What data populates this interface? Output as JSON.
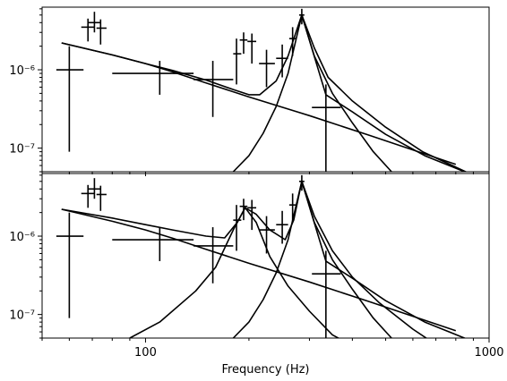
{
  "chart_data": [
    {
      "type": "line",
      "panel": "top",
      "x_scale": "log",
      "y_scale": "log",
      "xlim": [
        50,
        1000
      ],
      "ylim": [
        5e-08,
        6.3e-06
      ],
      "x_tick_labels": [],
      "y_ticks": [
        {
          "value": 1e-06,
          "label": "10⁻⁶"
        },
        {
          "value": 1e-07,
          "label": "10⁻⁷"
        }
      ],
      "grid": false,
      "datapoints": [
        {
          "x": 60,
          "y": 1e-06,
          "xerr": [
            55,
            66
          ],
          "yerr": [
            9e-08,
            2e-06
          ]
        },
        {
          "x": 68,
          "y": 3.5e-06,
          "xerr": [
            65,
            71
          ],
          "yerr": [
            2.3e-06,
            4.5e-06
          ]
        },
        {
          "x": 71,
          "y": 4e-06,
          "xerr": [
            68,
            74
          ],
          "yerr": [
            3e-06,
            5.5e-06
          ]
        },
        {
          "x": 74,
          "y": 3.4e-06,
          "xerr": [
            72,
            77
          ],
          "yerr": [
            2.1e-06,
            4.4e-06
          ]
        },
        {
          "x": 110,
          "y": 9e-07,
          "xerr": [
            80,
            138
          ],
          "yerr": [
            4.8e-07,
            1.3e-06
          ]
        },
        {
          "x": 157,
          "y": 7.5e-07,
          "xerr": [
            138,
            180
          ],
          "yerr": [
            2.5e-07,
            1.3e-06
          ]
        },
        {
          "x": 184,
          "y": 1.6e-06,
          "xerr": [
            180,
            190
          ],
          "yerr": [
            6.5e-07,
            2.5e-06
          ]
        },
        {
          "x": 193,
          "y": 2.4e-06,
          "xerr": [
            188,
            198
          ],
          "yerr": [
            1.6e-06,
            3e-06
          ]
        },
        {
          "x": 204,
          "y": 2.3e-06,
          "xerr": [
            198,
            210
          ],
          "yerr": [
            1.2e-06,
            2.9e-06
          ]
        },
        {
          "x": 225,
          "y": 1.2e-06,
          "xerr": [
            214,
            238
          ],
          "yerr": [
            6e-07,
            1.8e-06
          ]
        },
        {
          "x": 250,
          "y": 1.4e-06,
          "xerr": [
            240,
            260
          ],
          "yerr": [
            8e-07,
            2.1e-06
          ]
        },
        {
          "x": 268,
          "y": 2.5e-06,
          "xerr": [
            262,
            275
          ],
          "yerr": [
            1.5e-06,
            3.5e-06
          ]
        },
        {
          "x": 285,
          "y": 5e-06,
          "xerr": [
            280,
            290
          ],
          "yerr": [
            3.8e-06,
            6e-06
          ]
        },
        {
          "x": 335,
          "y": 3.3e-07,
          "xerr": [
            305,
            370
          ],
          "yerr": [
            5e-08,
            6.5e-07
          ]
        }
      ],
      "series": [
        {
          "x": [
            57,
            80,
            100,
            120,
            150,
            200,
            300,
            450,
            600,
            800
          ],
          "y": [
            2.2e-06,
            1.55e-06,
            1.2e-06,
            9.4e-07,
            6.8e-07,
            4.5e-07,
            2.6e-07,
            1.45e-07,
            9.5e-08,
            6.2e-08
          ]
        },
        {
          "x": [
            180,
            200,
            220,
            240,
            260,
            285,
            310,
            350,
            400,
            460,
            520
          ],
          "y": [
            5e-08,
            8e-08,
            1.55e-07,
            3.4e-07,
            9e-07,
            5e-06,
            1.5e-06,
            5e-07,
            2.1e-07,
            9e-08,
            5e-08
          ]
        },
        {
          "x": [
            57,
            80,
            100,
            120,
            150,
            180,
            200,
            215,
            240,
            260,
            285,
            310,
            340,
            400,
            500,
            640,
            900
          ],
          "y": [
            2.2e-06,
            1.55e-06,
            1.2e-06,
            9.8e-07,
            7.4e-07,
            5.6e-07,
            4.8e-07,
            4.8e-07,
            7.2e-07,
            1.5e-06,
            5e-06,
            1.9e-06,
            8e-07,
            4e-07,
            1.85e-07,
            9e-08,
            4.5e-08
          ]
        },
        {
          "x": [
            285,
            335,
            400,
            500,
            650,
            900
          ],
          "y": [
            5e-06,
            4.8e-07,
            2.9e-07,
            1.5e-07,
            8e-08,
            4.5e-08
          ]
        }
      ]
    },
    {
      "type": "line",
      "panel": "bottom",
      "x_scale": "log",
      "y_scale": "log",
      "xlim": [
        50,
        1000
      ],
      "ylim": [
        5e-08,
        6.3e-06
      ],
      "xlabel": "Frequency (Hz)",
      "x_ticks": [
        {
          "value": 100,
          "label": "100"
        },
        {
          "value": 1000,
          "label": "1000"
        }
      ],
      "y_ticks": [
        {
          "value": 1e-06,
          "label": "10⁻⁶"
        },
        {
          "value": 1e-07,
          "label": "10⁻⁷"
        }
      ],
      "grid": false,
      "datapoints": [
        {
          "x": 60,
          "y": 1e-06,
          "xerr": [
            55,
            66
          ],
          "yerr": [
            9e-08,
            2e-06
          ]
        },
        {
          "x": 68,
          "y": 3.5e-06,
          "xerr": [
            65,
            71
          ],
          "yerr": [
            2.3e-06,
            4.5e-06
          ]
        },
        {
          "x": 71,
          "y": 4e-06,
          "xerr": [
            68,
            74
          ],
          "yerr": [
            3e-06,
            5.5e-06
          ]
        },
        {
          "x": 74,
          "y": 3.4e-06,
          "xerr": [
            72,
            77
          ],
          "yerr": [
            2.1e-06,
            4.4e-06
          ]
        },
        {
          "x": 110,
          "y": 9e-07,
          "xerr": [
            80,
            138
          ],
          "yerr": [
            4.8e-07,
            1.3e-06
          ]
        },
        {
          "x": 157,
          "y": 7.5e-07,
          "xerr": [
            138,
            180
          ],
          "yerr": [
            2.5e-07,
            1.3e-06
          ]
        },
        {
          "x": 184,
          "y": 1.6e-06,
          "xerr": [
            180,
            190
          ],
          "yerr": [
            6.5e-07,
            2.5e-06
          ]
        },
        {
          "x": 193,
          "y": 2.4e-06,
          "xerr": [
            188,
            198
          ],
          "yerr": [
            1.6e-06,
            3e-06
          ]
        },
        {
          "x": 204,
          "y": 2.3e-06,
          "xerr": [
            198,
            210
          ],
          "yerr": [
            1.2e-06,
            2.9e-06
          ]
        },
        {
          "x": 225,
          "y": 1.2e-06,
          "xerr": [
            214,
            238
          ],
          "yerr": [
            6e-07,
            1.8e-06
          ]
        },
        {
          "x": 250,
          "y": 1.4e-06,
          "xerr": [
            240,
            260
          ],
          "yerr": [
            8e-07,
            2.1e-06
          ]
        },
        {
          "x": 268,
          "y": 2.5e-06,
          "xerr": [
            262,
            275
          ],
          "yerr": [
            1.5e-06,
            3.5e-06
          ]
        },
        {
          "x": 285,
          "y": 5e-06,
          "xerr": [
            280,
            290
          ],
          "yerr": [
            3.8e-06,
            6e-06
          ]
        },
        {
          "x": 335,
          "y": 3.3e-07,
          "xerr": [
            305,
            370
          ],
          "yerr": [
            5e-08,
            6.5e-07
          ]
        }
      ],
      "series": [
        {
          "x": [
            57,
            80,
            100,
            120,
            150,
            200,
            300,
            450,
            600,
            800
          ],
          "y": [
            2.2e-06,
            1.55e-06,
            1.2e-06,
            9.4e-07,
            6.8e-07,
            4.5e-07,
            2.6e-07,
            1.45e-07,
            9.5e-08,
            6.2e-08
          ]
        },
        {
          "x": [
            90,
            110,
            140,
            160,
            180,
            195,
            210,
            230,
            260,
            300,
            350,
            400
          ],
          "y": [
            5e-08,
            8e-08,
            2e-07,
            4e-07,
            1.2e-06,
            2.3e-06,
            1.5e-06,
            5.5e-07,
            2.3e-07,
            1.1e-07,
            5.5e-08,
            4e-08
          ]
        },
        {
          "x": [
            180,
            200,
            220,
            240,
            260,
            285,
            310,
            350,
            400,
            460,
            520
          ],
          "y": [
            5e-08,
            8e-08,
            1.55e-07,
            3.4e-07,
            9e-07,
            5e-06,
            1.5e-06,
            5e-07,
            2.1e-07,
            9e-08,
            5e-08
          ]
        },
        {
          "x": [
            57,
            80,
            100,
            120,
            150,
            170,
            185,
            195,
            210,
            230,
            255,
            270,
            285,
            310,
            350,
            400,
            480,
            600,
            680
          ],
          "y": [
            2.2e-06,
            1.7e-06,
            1.4e-06,
            1.2e-06,
            1e-06,
            9.5e-07,
            1.5e-06,
            2.3e-06,
            1.9e-06,
            1.2e-06,
            9e-07,
            1.6e-06,
            5e-06,
            1.8e-06,
            6.5e-07,
            3e-07,
            1.4e-07,
            6.5e-08,
            4.5e-08
          ]
        },
        {
          "x": [
            285,
            335,
            400,
            500,
            650,
            900
          ],
          "y": [
            5e-06,
            4.8e-07,
            2.9e-07,
            1.5e-07,
            8e-08,
            4.5e-08
          ]
        }
      ]
    }
  ]
}
